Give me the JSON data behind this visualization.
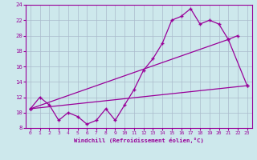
{
  "bg_color": "#cde8ec",
  "grid_color": "#aabbcc",
  "line_color": "#990099",
  "xlabel": "Windchill (Refroidissement éolien,°C)",
  "xlim": [
    -0.5,
    23.5
  ],
  "ylim": [
    8,
    24
  ],
  "yticks": [
    8,
    10,
    12,
    14,
    16,
    18,
    20,
    22,
    24
  ],
  "xticks": [
    0,
    1,
    2,
    3,
    4,
    5,
    6,
    7,
    8,
    9,
    10,
    11,
    12,
    13,
    14,
    15,
    16,
    17,
    18,
    19,
    20,
    21,
    22,
    23
  ],
  "curve1_x": [
    0,
    1,
    2,
    3,
    4,
    5,
    6,
    7,
    8,
    9,
    10,
    11,
    12,
    13,
    14,
    15,
    16,
    17,
    18,
    19,
    20,
    21,
    22
  ],
  "curve1_y": [
    10.5,
    12.0,
    11.0,
    9.0,
    10.0,
    9.5,
    8.5,
    9.0,
    10.5,
    9.0,
    11.0,
    13.0,
    15.5,
    17.0,
    19.0,
    22.0,
    22.5,
    23.5,
    21.5,
    22.0,
    21.5,
    19.5,
    20.0
  ],
  "curve2_x": [
    0,
    23
  ],
  "curve2_y": [
    10.5,
    13.5
  ],
  "curve3_x": [
    0,
    21,
    23
  ],
  "curve3_y": [
    10.5,
    19.5,
    13.5
  ]
}
